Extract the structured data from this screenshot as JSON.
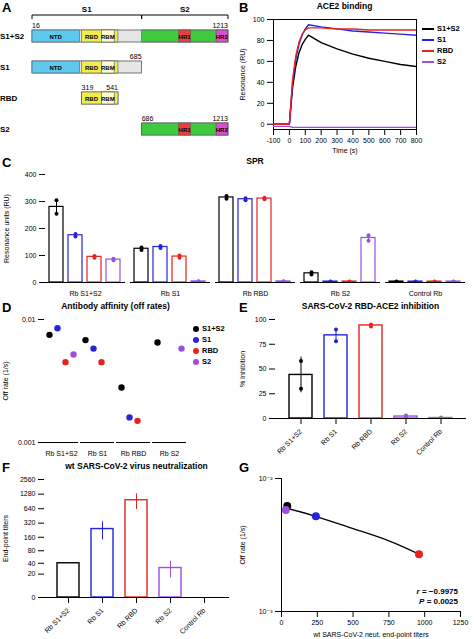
{
  "diagram": {
    "panel": "A",
    "brackets": [
      {
        "label": "S1",
        "start": 16,
        "end": 685
      },
      {
        "label": "S2",
        "start": 686,
        "end": 1213
      }
    ],
    "constructs": [
      {
        "name": "S1+S2",
        "start": 16,
        "end": 1213,
        "numbers": [
          16,
          1213
        ]
      },
      {
        "name": "S1",
        "start": 16,
        "end": 685,
        "numbers": [
          685
        ]
      },
      {
        "name": "RBD",
        "start": 319,
        "end": 541,
        "numbers": [
          319,
          541
        ]
      },
      {
        "name": "S2",
        "start": 686,
        "end": 1213,
        "numbers": [
          686,
          1213
        ]
      }
    ],
    "domains": [
      {
        "label": "NTD",
        "start": 16,
        "end": 305,
        "color": "#5ec8ee"
      },
      {
        "label": "RBD",
        "start": 319,
        "end": 541,
        "color": "#f3ea4f"
      },
      {
        "label": "RBM",
        "start": 440,
        "end": 518,
        "color": "#fffbd0"
      },
      {
        "start": 686,
        "end": 1213,
        "color": "#3fc93f"
      },
      {
        "label": "HR1",
        "start": 912,
        "end": 984,
        "color": "#ee3b3b"
      },
      {
        "label": "HR2",
        "start": 1140,
        "end": 1210,
        "color": "#d64fd6"
      }
    ]
  },
  "chart_data": [
    {
      "panel": "B",
      "type": "line",
      "title": "ACE2 binding",
      "xlabel": "Time (s)",
      "ylabel": "Resonance (RU)",
      "x": [
        -100,
        -50,
        0,
        20,
        40,
        60,
        80,
        100,
        120,
        200,
        300,
        400,
        500,
        600,
        700,
        800
      ],
      "xlim": [
        -100,
        800
      ],
      "xticks": [
        -100,
        0,
        100,
        200,
        300,
        400,
        500,
        600,
        700,
        800
      ],
      "ylim": [
        -5,
        100
      ],
      "yticks": [
        0,
        20,
        40,
        60,
        80,
        100
      ],
      "legend": "right",
      "series": [
        {
          "name": "S1+S2",
          "color": "#000000",
          "values": [
            0,
            0,
            0,
            35,
            55,
            68,
            76,
            81,
            85,
            78,
            72,
            67,
            63,
            60,
            57,
            55
          ]
        },
        {
          "name": "S1",
          "color": "#2323e0",
          "values": [
            0,
            0,
            0,
            40,
            62,
            76,
            85,
            91,
            95,
            93,
            91,
            89,
            88,
            87,
            86,
            85
          ]
        },
        {
          "name": "RBD",
          "color": "#e8221e",
          "values": [
            0,
            0,
            0,
            42,
            65,
            78,
            86,
            90,
            92,
            92,
            91,
            91,
            90,
            90,
            90,
            90
          ]
        },
        {
          "name": "S2",
          "color": "#9b4fe0",
          "values": [
            -2,
            -2,
            -2,
            -3,
            -3,
            -3,
            -3,
            -3,
            -3,
            -3,
            -3,
            -3,
            -3,
            -3,
            -3,
            -3
          ]
        }
      ]
    },
    {
      "panel": "C",
      "type": "bar",
      "title": "SPR",
      "ylabel": "Resonance units (RU)",
      "categories": [
        "Rb S1+S2",
        "Rb S1",
        "Rb RBD",
        "Rb S2",
        "Control Rb"
      ],
      "ylim": [
        0,
        400
      ],
      "yticks": [
        0,
        100,
        200,
        300,
        400
      ],
      "series": [
        {
          "name": "S1+S2",
          "color": "#000000",
          "values": [
            280,
            125,
            315,
            34,
            3.5
          ],
          "replicates": [
            [
              255,
              305
            ],
            [
              120,
              130
            ],
            [
              310,
              320
            ],
            [
              30,
              38
            ],
            [
              3,
              4
            ]
          ]
        },
        {
          "name": "S1",
          "color": "#2323e0",
          "values": [
            175,
            131.5,
            308.5,
            3.5,
            3.5
          ],
          "replicates": [
            [
              170,
              180
            ],
            [
              128,
              135
            ],
            [
              305,
              312
            ],
            [
              3,
              4
            ],
            [
              3,
              4
            ]
          ]
        },
        {
          "name": "RBD",
          "color": "#e8221e",
          "values": [
            95,
            96,
            311,
            3.5,
            3.5
          ],
          "replicates": [
            [
              92,
              98
            ],
            [
              92,
              100
            ],
            [
              308,
              314
            ],
            [
              3,
              4
            ],
            [
              3,
              4
            ]
          ]
        },
        {
          "name": "S2",
          "color": "#9b4fe0",
          "values": [
            85,
            4,
            4,
            165,
            3.5
          ],
          "replicates": [
            [
              82,
              88
            ],
            [
              3,
              5
            ],
            [
              3,
              5
            ],
            [
              155,
              175
            ],
            [
              3,
              4
            ]
          ]
        }
      ]
    },
    {
      "panel": "D",
      "type": "scatter",
      "title": "Antibody affinity (off rates)",
      "ylabel": "Off rate (1/s)",
      "categories": [
        "Rb S1+S2",
        "Rb S1",
        "Rb RBD",
        "Rb S2"
      ],
      "log": "y",
      "ylim": [
        0.001,
        0.01
      ],
      "yticks": [
        0.001,
        0.01
      ],
      "legend": "right",
      "series": [
        {
          "name": "S1+S2",
          "color": "#000000",
          "values": [
            0.0075,
            0.0068,
            0.0028,
            0.0065
          ]
        },
        {
          "name": "S1",
          "color": "#2323e0",
          "values": [
            0.0085,
            0.0058,
            0.0016,
            null
          ]
        },
        {
          "name": "RBD",
          "color": "#e8221e",
          "values": [
            0.0045,
            0.0045,
            0.0015,
            null
          ]
        },
        {
          "name": "S2",
          "color": "#9b4fe0",
          "values": [
            0.0052,
            null,
            null,
            0.0058
          ]
        }
      ]
    },
    {
      "panel": "E",
      "type": "bar",
      "title": "SARS-CoV-2 RBD-ACE2 inhibition",
      "ylabel": "% Inhibition",
      "categories": [
        "Rb S1+S2",
        "Rb S1",
        "Rb RBD",
        "Rb S2",
        "Control Rb"
      ],
      "values": [
        44,
        84,
        94,
        2,
        0.5
      ],
      "errors": [
        18,
        7,
        1,
        1.5,
        0.5
      ],
      "replicates": [
        [
          30,
          58
        ],
        [
          78,
          90
        ],
        [
          93,
          95
        ],
        [
          1,
          3
        ],
        [
          0,
          1
        ]
      ],
      "colors": [
        "#000000",
        "#2323e0",
        "#e8221e",
        "#9b4fe0",
        "#808080"
      ],
      "ylim": [
        0,
        100
      ],
      "yticks": [
        0,
        25,
        50,
        75,
        100
      ]
    },
    {
      "panel": "F",
      "type": "bar",
      "title": "wt SARS-CoV-2 virus neutralization",
      "ylabel": "End-point titers",
      "categories": [
        "Rb S1+S2",
        "Rb S1",
        "Rb RBD",
        "Rb S2",
        "Control Rb"
      ],
      "values": [
        40,
        240,
        960,
        30,
        0
      ],
      "errors": [
        0,
        100,
        340,
        15,
        0
      ],
      "colors": [
        "#000000",
        "#2323e0",
        "#e8221e",
        "#9b4fe0",
        "#808080"
      ],
      "log": "y",
      "ylim": [
        0,
        2560
      ],
      "yticks": [
        0,
        20,
        40,
        80,
        160,
        320,
        640,
        1280,
        2560
      ]
    },
    {
      "panel": "G",
      "type": "scatter",
      "xlabel": "wt SARS-CoV-2 neut. end-point titers",
      "ylabel": "Off rate (1/s)",
      "xlim": [
        0,
        1250
      ],
      "xticks": [
        0,
        250,
        500,
        750,
        1000,
        1250
      ],
      "log": "y",
      "ylim": [
        0.001,
        0.01
      ],
      "yticks": [
        {
          "value": 0.001,
          "label": "10⁻³"
        },
        {
          "value": 0.01,
          "label": "10⁻²"
        }
      ],
      "series": [
        {
          "type": "line",
          "color": "#000000",
          "x": [
            30,
            240,
            500,
            750,
            960
          ],
          "values": [
            0.006,
            0.0052,
            0.0042,
            0.0034,
            0.0027
          ]
        },
        {
          "type": "scatter",
          "x": [
            40,
            30,
            240,
            960
          ],
          "values": [
            0.0062,
            0.0058,
            0.0052,
            0.0027
          ],
          "colors": [
            "#000000",
            "#9b4fe0",
            "#2323e0",
            "#e8221e"
          ]
        }
      ],
      "annotations": [
        {
          "text": "r = −0.9975"
        },
        {
          "text": "P = 0.0025"
        }
      ]
    }
  ]
}
